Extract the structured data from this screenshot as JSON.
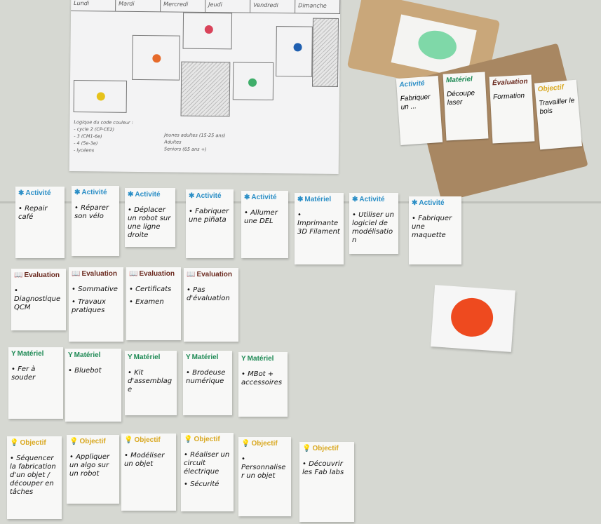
{
  "poster": {
    "days": [
      "Lundi",
      "Mardi",
      "Mercredi",
      "Jeudi",
      "Vendredi",
      "Dimanche"
    ],
    "legend_title": "Logique du code couleur :",
    "legend_left": [
      "- cycle 2 (CP-CE2)",
      "- 3 (CM1-6e)",
      "- 4 (5e-3e)",
      "- lycéens"
    ],
    "legend_right": [
      "Jeunes adultes (15-25 ans)",
      "Adultes",
      "Seniors (65 ans +)"
    ],
    "dot_colors": {
      "yellow": "#e6c21a",
      "orange": "#e66a2a",
      "red": "#d9435a",
      "green": "#3fae6a",
      "blue": "#1f5fb0"
    }
  },
  "box": {
    "cards": [
      {
        "category": "Activité",
        "text": "Fabriquer un ..."
      },
      {
        "category": "Matériel",
        "text": "Découpe laser"
      },
      {
        "category": "Évaluation",
        "text": "Formation"
      },
      {
        "category": "Objectif",
        "text": "Travailler le bois"
      }
    ]
  },
  "colors": {
    "activite": "#2a8ec6",
    "evaluation": "#6b2a1f",
    "materiel": "#1f8a55",
    "objectif": "#d9a820",
    "red_dot": "#ee4a1f"
  },
  "icons": {
    "activite": "gear-icon",
    "evaluation": "book-icon",
    "materiel": "tool-icon",
    "objectif": "lightbulb-icon"
  },
  "rows": {
    "activites": [
      {
        "title": "Activité",
        "items": [
          "Repair café"
        ]
      },
      {
        "title": "Activité",
        "items": [
          "Réparer son vélo"
        ]
      },
      {
        "title": "Activité",
        "items": [
          "Déplacer un robot sur une ligne droite"
        ]
      },
      {
        "title": "Activité",
        "items": [
          "Fabriquer une piñata"
        ]
      },
      {
        "title": "Activité",
        "items": [
          "Allumer une DEL"
        ]
      },
      {
        "title": "Matériel",
        "items": [
          "Imprimante 3D Filament"
        ]
      },
      {
        "title": "Activité",
        "items": [
          "Utiliser un logiciel de modélisation"
        ]
      },
      {
        "title": "Activité",
        "items": [
          "Fabriquer une maquette"
        ]
      }
    ],
    "evaluations": [
      {
        "title": "Evaluation",
        "items": [
          "Diagnostique QCM"
        ]
      },
      {
        "title": "Evaluation",
        "items": [
          "Sommative",
          "Travaux pratiques"
        ]
      },
      {
        "title": "Evaluation",
        "items": [
          "Certificats",
          "Examen"
        ]
      },
      {
        "title": "Evaluation",
        "items": [
          "Pas d'évaluation"
        ]
      }
    ],
    "materiels": [
      {
        "title": "Matériel",
        "items": [
          "Fer à souder"
        ]
      },
      {
        "title": "Matériel",
        "items": [
          "Bluebot"
        ]
      },
      {
        "title": "Matériel",
        "items": [
          "Kit d'assemblage"
        ]
      },
      {
        "title": "Matériel",
        "items": [
          "Brodeuse numérique"
        ]
      },
      {
        "title": "Matériel",
        "items": [
          "MBot + accessoires"
        ]
      }
    ],
    "objectifs": [
      {
        "title": "Objectif",
        "items": [
          "Séquencer la fabrication d'un objet / découper en tâches"
        ]
      },
      {
        "title": "Objectif",
        "items": [
          "Appliquer un algo sur un robot"
        ]
      },
      {
        "title": "Objectif",
        "items": [
          "Modéliser un objet"
        ]
      },
      {
        "title": "Objectif",
        "items": [
          "Réaliser un circuit électrique",
          "Sécurité"
        ]
      },
      {
        "title": "Objectif",
        "items": [
          "Personnaliser un objet"
        ]
      },
      {
        "title": "Objectif",
        "items": [
          "Découvrir les Fab labs"
        ]
      }
    ]
  }
}
